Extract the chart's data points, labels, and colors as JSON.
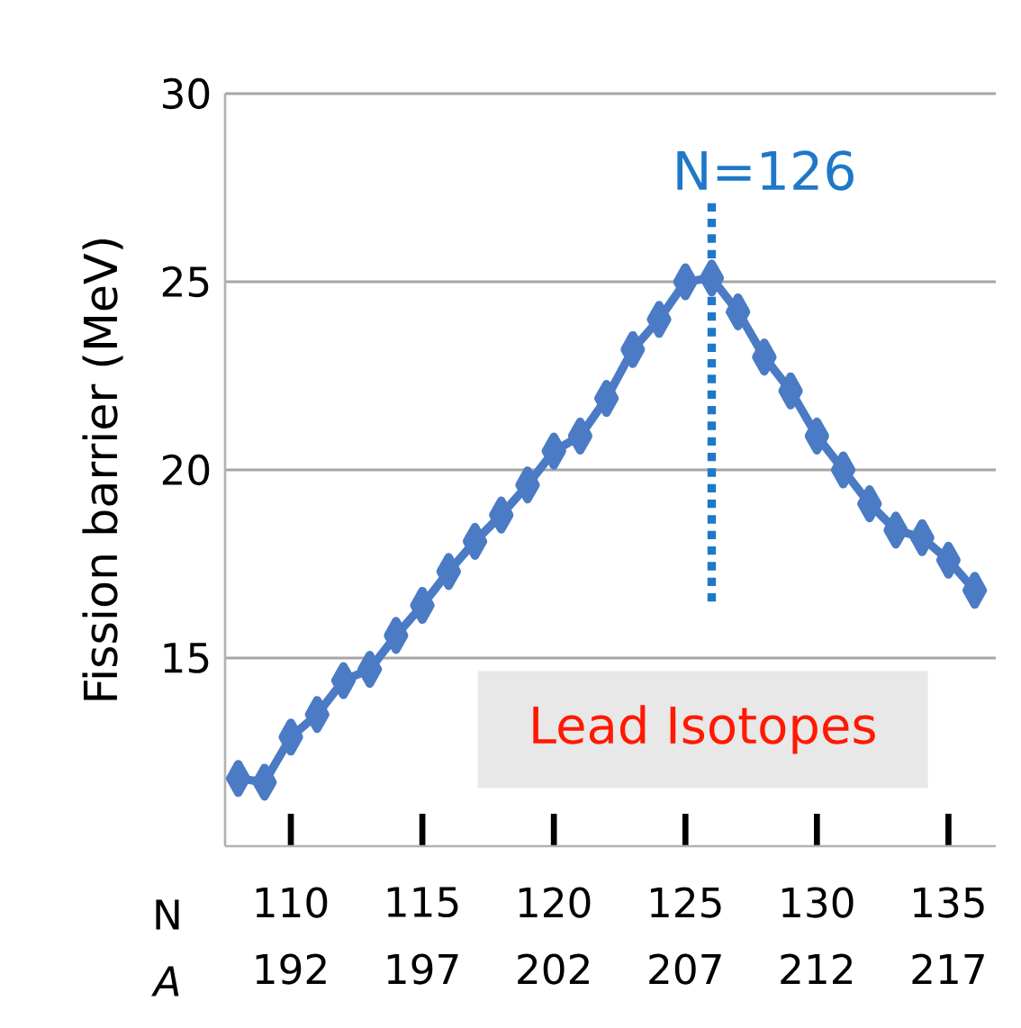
{
  "chart_data": {
    "type": "line",
    "xlabel": "N",
    "x2label": "A",
    "ylabel": "Fission  barrier  (MeV)",
    "x": [
      108,
      109,
      110,
      111,
      112,
      113,
      114,
      115,
      116,
      117,
      118,
      119,
      120,
      121,
      122,
      123,
      124,
      125,
      126,
      127,
      128,
      129,
      130,
      131,
      132,
      133,
      134,
      135,
      136
    ],
    "series": [
      {
        "color": "#4a7bc4",
        "values": [
          11.8,
          11.7,
          12.9,
          13.5,
          14.4,
          14.7,
          15.6,
          16.4,
          17.3,
          18.1,
          18.8,
          19.6,
          20.5,
          20.9,
          21.9,
          23.2,
          24.0,
          25.0,
          25.1,
          24.2,
          23.0,
          22.1,
          20.9,
          20.0,
          19.1,
          18.4,
          18.2,
          17.6,
          16.8
        ]
      }
    ],
    "xlim": [
      107.5,
      136.8
    ],
    "ylim": [
      10,
      30
    ],
    "xticks": [
      110,
      115,
      120,
      125,
      130,
      135
    ],
    "yticks": [
      15,
      20,
      25,
      30
    ],
    "x2lim": [
      189.5,
      218.8
    ],
    "x2ticks": [
      192,
      197,
      202,
      207,
      212,
      217
    ],
    "grid": "y",
    "marker": "diamond",
    "line_style": "solid",
    "ref_lines": [
      {
        "axis": "x",
        "value": 126,
        "label": "N=126",
        "color": "#1f78c8",
        "line_style": "dotted"
      }
    ],
    "annotations": [
      "Lead Isotopes"
    ]
  }
}
